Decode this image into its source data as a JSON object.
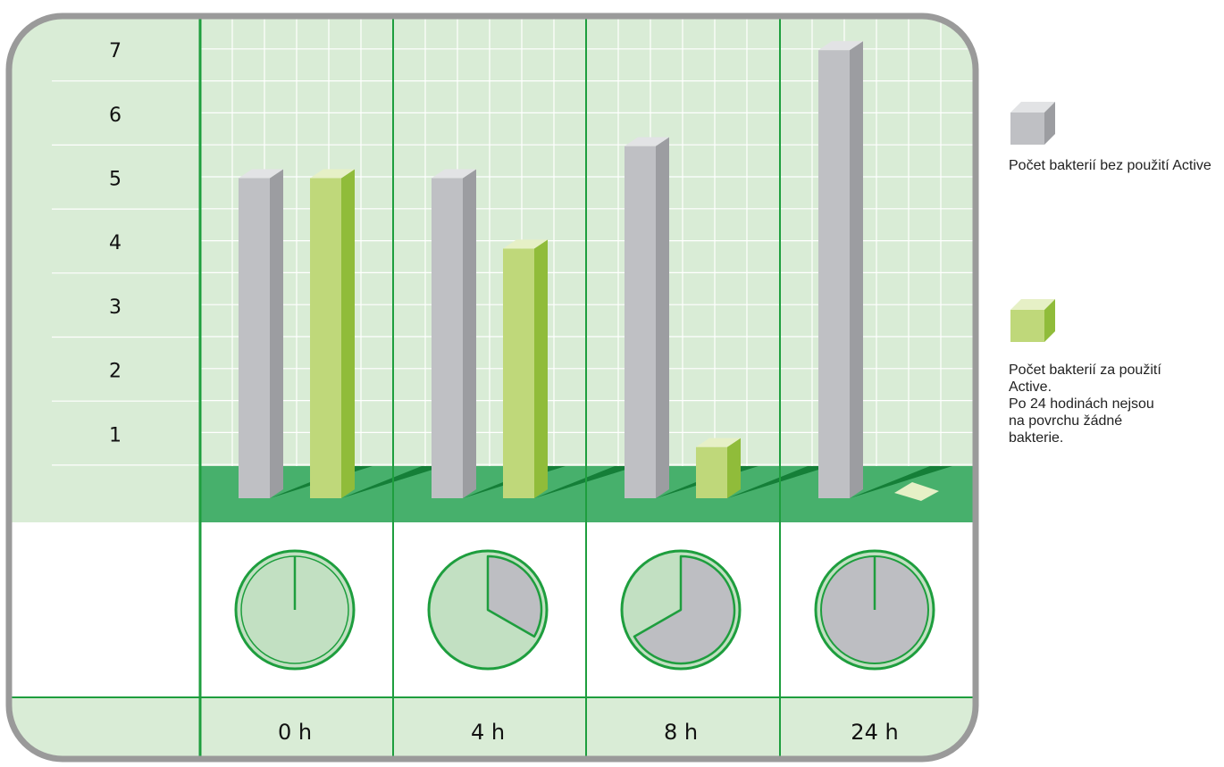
{
  "chart_data": {
    "type": "bar",
    "categories": [
      "0 h",
      "4 h",
      "8 h",
      "24 h"
    ],
    "y_ticks": [
      "1",
      "2",
      "3",
      "4",
      "5",
      "6",
      "7"
    ],
    "ylim": [
      0,
      7.5
    ],
    "series": [
      {
        "name": "Počet bakterií bez použití Active",
        "values": [
          5.0,
          5.0,
          5.5,
          7.0
        ],
        "color": "#bfc0c4"
      },
      {
        "name": "Počet bakterií za použití Active.",
        "values": [
          5.0,
          3.9,
          0.8,
          0.0
        ],
        "color": "#bfd87a"
      }
    ],
    "clock_elapsed_fraction": [
      0.0,
      0.333,
      0.667,
      1.0
    ],
    "grid": true
  },
  "legend": {
    "without_active": {
      "label": "Počet bakterií bez použití Active",
      "icon": "gray-cube-icon"
    },
    "with_active": {
      "label": "Počet bakterií za použití Active.",
      "note": [
        "Po 24 hodinách nejsou",
        "na povrchu žádné",
        "bakterie."
      ],
      "icon": "green-cube-icon"
    }
  },
  "colors": {
    "panel_bg": "#d9ecd6",
    "grid_line": "#ffffff",
    "green_line": "#1e9e3e",
    "floor": "#47b06c",
    "frame": "#9a9a9a",
    "clock_face": "#c2e0c2",
    "clock_gray": "#bdbec2",
    "gray_bar_front": "#bfc0c4",
    "gray_bar_side": "#9c9da1",
    "gray_bar_top": "#e2e3e5",
    "green_bar_front": "#bfd87a",
    "green_bar_side": "#90bc3a",
    "green_bar_top": "#e6f0c6"
  }
}
